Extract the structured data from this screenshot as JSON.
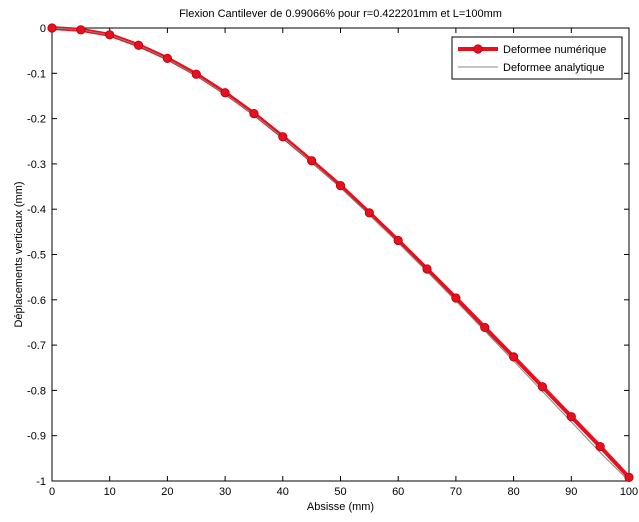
{
  "chart_data": {
    "type": "line",
    "title": "Flexion Cantilever de 0.99066% pour r=0.422201mm et L=100mm",
    "xlabel": "Absisse (mm)",
    "ylabel": "Déplacements verticaux (mm)",
    "xlim": [
      0,
      100
    ],
    "ylim": [
      -1,
      0
    ],
    "xticks": [
      0,
      10,
      20,
      30,
      40,
      50,
      60,
      70,
      80,
      90,
      100
    ],
    "yticks": [
      0,
      -0.1,
      -0.2,
      -0.3,
      -0.4,
      -0.5,
      -0.6,
      -0.7,
      -0.8,
      -0.9,
      -1
    ],
    "ytick_labels": [
      "0",
      "-0.1",
      "-0.2",
      "-0.3",
      "-0.4",
      "-0.5",
      "-0.6",
      "-0.7",
      "-0.8",
      "-0.9",
      "-1"
    ],
    "grid": false,
    "legend_position": "top-right",
    "x": [
      0,
      5,
      10,
      15,
      20,
      25,
      30,
      35,
      40,
      45,
      50,
      55,
      60,
      65,
      70,
      75,
      80,
      85,
      90,
      95,
      100
    ],
    "series": [
      {
        "name": "Deformee numérique",
        "color": "#e8101c",
        "style": "thick line with circle markers",
        "values": [
          0,
          -0.004,
          -0.015,
          -0.038,
          -0.067,
          -0.102,
          -0.143,
          -0.189,
          -0.24,
          -0.293,
          -0.348,
          -0.408,
          -0.469,
          -0.532,
          -0.596,
          -0.661,
          -0.726,
          -0.792,
          -0.858,
          -0.924,
          -0.992
        ]
      },
      {
        "name": "Deformee analytique",
        "color": "#888888",
        "style": "thin line",
        "values": [
          0,
          -0.004,
          -0.0158,
          -0.0383,
          -0.0683,
          -0.1042,
          -0.1454,
          -0.1913,
          -0.2416,
          -0.2956,
          -0.3528,
          -0.4125,
          -0.4744,
          -0.5378,
          -0.6027,
          -0.6686,
          -0.7352,
          -0.8022,
          -0.8695,
          -0.9371,
          -1.0
        ]
      }
    ]
  }
}
